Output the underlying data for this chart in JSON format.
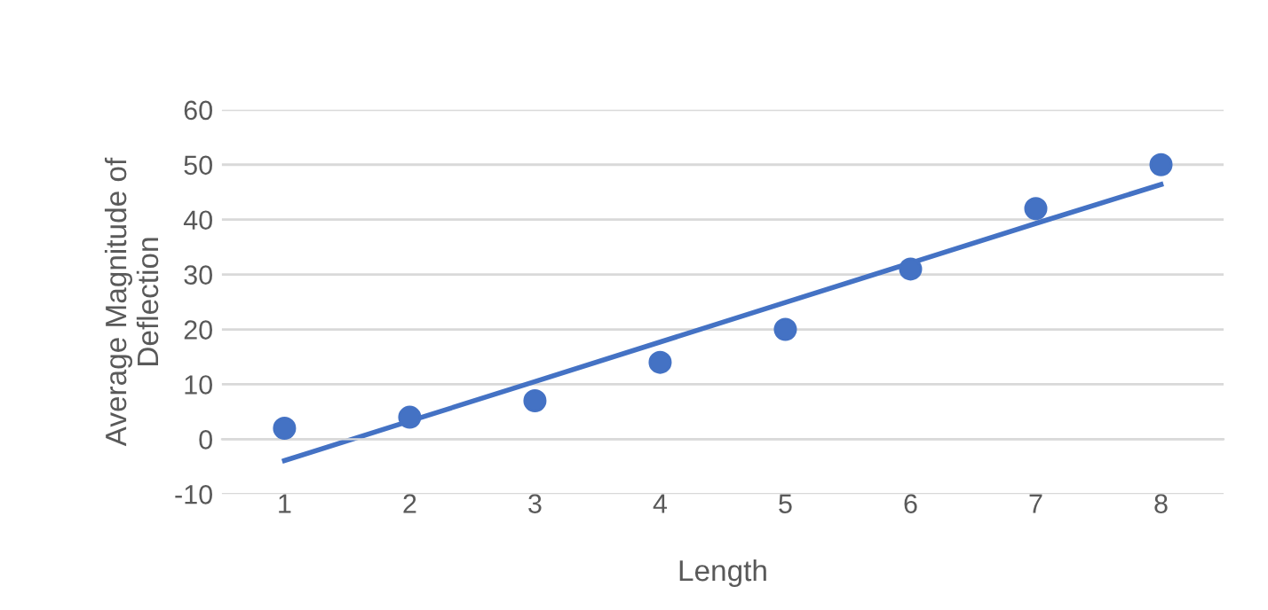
{
  "chart_data": {
    "type": "scatter",
    "xlabel": "Length",
    "ylabel": "Average Magnitude of\nDeflection",
    "categories": [
      "1",
      "2",
      "3",
      "4",
      "5",
      "6",
      "7",
      "8"
    ],
    "series": [
      {
        "color": "#4472c4",
        "values": [
          2,
          4,
          7,
          14,
          20,
          31,
          42,
          50
        ]
      },
      {
        "type": "line",
        "marker": "none",
        "color": "#4472c4",
        "values": [
          -3.9,
          3.3,
          10.5,
          17.7,
          24.9,
          32.1,
          39.3,
          46.4
        ]
      }
    ],
    "ylim": [
      -10,
      60
    ],
    "yticks": [
      -10,
      0,
      10,
      20,
      30,
      40,
      50,
      60
    ],
    "grid": "y",
    "marker": "circle",
    "line_style": "solid"
  }
}
